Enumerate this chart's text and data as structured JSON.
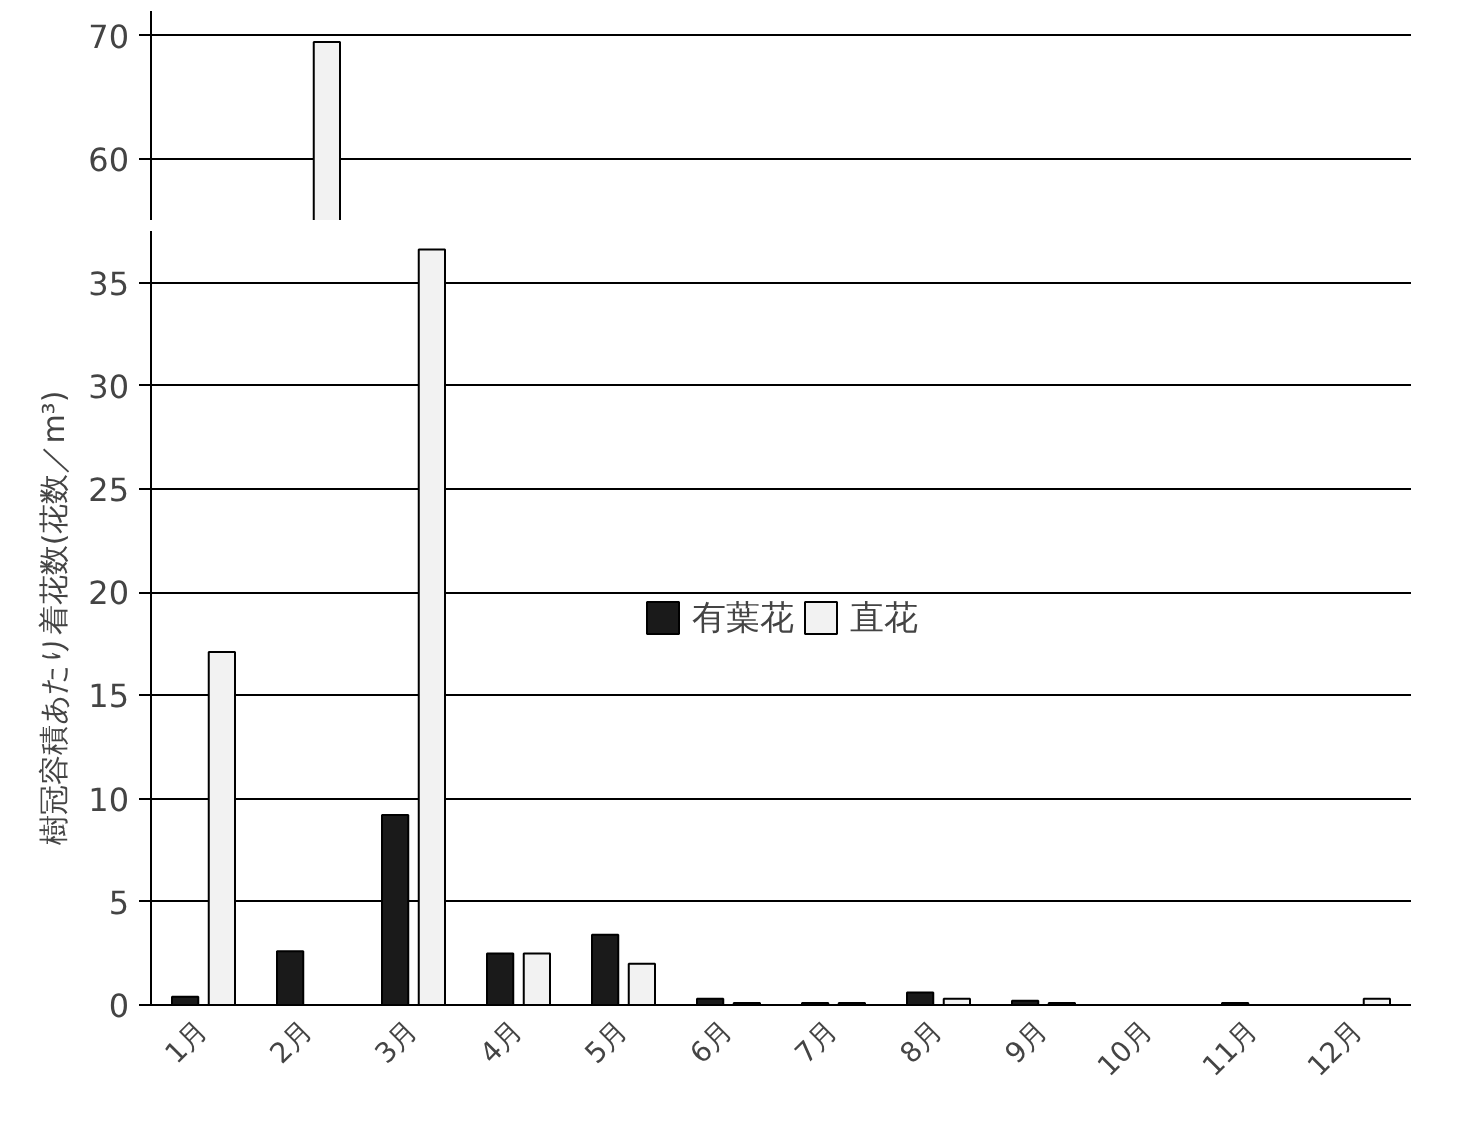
{
  "chart_data": [
    {
      "type": "bar",
      "categories": [
        null,
        null,
        null,
        null,
        null,
        null,
        null,
        null,
        null,
        null,
        null,
        null
      ],
      "series": [
        {
          "color": "#f2f2f2",
          "values": [
            null,
            69.5,
            null,
            null,
            null,
            null,
            null,
            null,
            null,
            null,
            null,
            null
          ]
        }
      ],
      "ylim": [
        55,
        72
      ],
      "yticks": [
        60,
        70
      ],
      "grid": "y",
      "tick_labels": "y"
    },
    {
      "type": "bar",
      "categories": [
        "1月",
        "2月",
        "3月",
        "4月",
        "5月",
        "6月",
        "7月",
        "8月",
        "9月",
        "10月",
        "11月",
        "12月"
      ],
      "series": [
        {
          "name": "有葉花",
          "color": "#1a1a1a",
          "values": [
            0.4,
            2.6,
            9.2,
            2.5,
            3.4,
            0.3,
            0.1,
            0.6,
            0.2,
            null,
            0.1,
            null
          ]
        },
        {
          "name": "直花",
          "color": "#f2f2f2",
          "values": [
            17.1,
            null,
            36.6,
            2.5,
            2.0,
            0.1,
            0.1,
            0.3,
            0.1,
            null,
            null,
            0.3
          ]
        }
      ],
      "ylabel": "樹冠容積あたり着花数(花数／m³)",
      "ylim": [
        0,
        37.5
      ],
      "yticks": [
        0,
        5,
        10,
        15,
        20,
        25,
        30,
        35
      ],
      "grid": "y",
      "legend": "center"
    }
  ]
}
